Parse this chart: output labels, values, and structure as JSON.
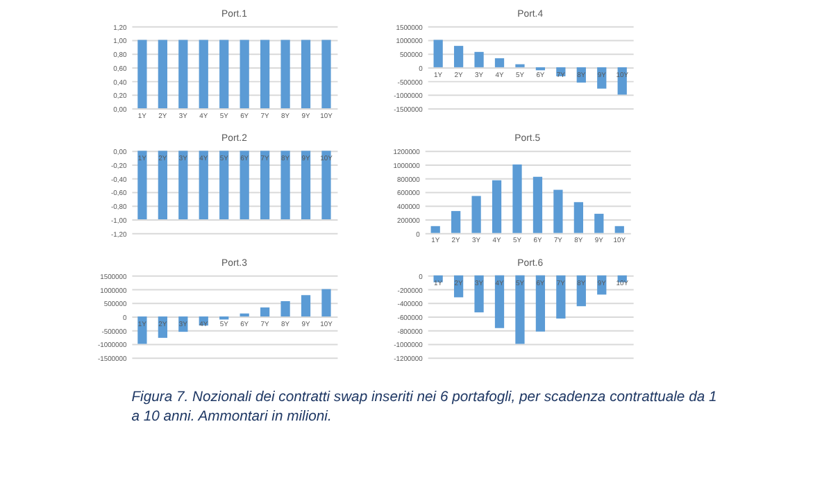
{
  "chart_data": [
    {
      "type": "bar",
      "title": "Port.1",
      "categories": [
        "1Y",
        "2Y",
        "3Y",
        "4Y",
        "5Y",
        "6Y",
        "7Y",
        "8Y",
        "9Y",
        "10Y"
      ],
      "values": [
        1,
        1,
        1,
        1,
        1,
        1,
        1,
        1,
        1,
        1
      ],
      "color": "#5b9bd5",
      "ylim": [
        0,
        1.2
      ],
      "yticks": [
        {
          "value": 0,
          "label": "0,00"
        },
        {
          "value": 0.2,
          "label": "0,20"
        },
        {
          "value": 0.4,
          "label": "0,40"
        },
        {
          "value": 0.6,
          "label": "0,60"
        },
        {
          "value": 0.8,
          "label": "0,80"
        },
        {
          "value": 1,
          "label": "1,00"
        },
        {
          "value": 1.2,
          "label": "1,20"
        }
      ],
      "grid": "y"
    },
    {
      "type": "bar",
      "title": "Port.4",
      "categories": [
        "1Y",
        "2Y",
        "3Y",
        "4Y",
        "5Y",
        "6Y",
        "7Y",
        "8Y",
        "9Y",
        "10Y"
      ],
      "values": [
        1000000,
        780000,
        560000,
        330000,
        110000,
        -110000,
        -330000,
        -560000,
        -780000,
        -1000000
      ],
      "color": "#5b9bd5",
      "ylim": [
        -1500000,
        1500000
      ],
      "yticks": [
        -1500000,
        -1000000,
        -500000,
        0,
        500000,
        1000000,
        1500000
      ],
      "grid": "y"
    },
    {
      "type": "bar",
      "title": "Port.2",
      "categories": [
        "1Y",
        "2Y",
        "3Y",
        "4Y",
        "5Y",
        "6Y",
        "7Y",
        "8Y",
        "9Y",
        "10Y"
      ],
      "values": [
        -1,
        -1,
        -1,
        -1,
        -1,
        -1,
        -1,
        -1,
        -1,
        -1
      ],
      "color": "#5b9bd5",
      "ylim": [
        -1.2,
        0
      ],
      "yticks": [
        {
          "value": -1.2,
          "label": "-1,20"
        },
        {
          "value": -1,
          "label": "-1,00"
        },
        {
          "value": -0.8,
          "label": "-0,80"
        },
        {
          "value": -0.6,
          "label": "-0,60"
        },
        {
          "value": -0.4,
          "label": "-0,40"
        },
        {
          "value": -0.2,
          "label": "-0,20"
        },
        {
          "value": 0,
          "label": "0,00"
        }
      ],
      "grid": "y"
    },
    {
      "type": "bar",
      "title": "Port.5",
      "categories": [
        "1Y",
        "2Y",
        "3Y",
        "4Y",
        "5Y",
        "6Y",
        "7Y",
        "8Y",
        "9Y",
        "10Y"
      ],
      "values": [
        100000,
        320000,
        540000,
        770000,
        1000000,
        820000,
        630000,
        450000,
        280000,
        100000
      ],
      "color": "#5b9bd5",
      "ylim": [
        0,
        1200000
      ],
      "yticks": [
        0,
        200000,
        400000,
        600000,
        800000,
        1000000,
        1200000
      ],
      "grid": "y"
    },
    {
      "type": "bar",
      "title": "Port.3",
      "categories": [
        "1Y",
        "2Y",
        "3Y",
        "4Y",
        "5Y",
        "6Y",
        "7Y",
        "8Y",
        "9Y",
        "10Y"
      ],
      "values": [
        -1000000,
        -780000,
        -560000,
        -330000,
        -110000,
        110000,
        330000,
        560000,
        780000,
        1000000
      ],
      "color": "#5b9bd5",
      "ylim": [
        -1500000,
        1500000
      ],
      "yticks": [
        -1500000,
        -1000000,
        -500000,
        0,
        500000,
        1000000,
        1500000
      ],
      "grid": "y"
    },
    {
      "type": "bar",
      "title": "Port.6",
      "categories": [
        "1Y",
        "2Y",
        "3Y",
        "4Y",
        "5Y",
        "6Y",
        "7Y",
        "8Y",
        "9Y",
        "10Y"
      ],
      "values": [
        -100000,
        -320000,
        -540000,
        -770000,
        -1000000,
        -820000,
        -630000,
        -450000,
        -280000,
        -100000
      ],
      "color": "#5b9bd5",
      "ylim": [
        -1200000,
        0
      ],
      "yticks": [
        -1200000,
        -1000000,
        -800000,
        -600000,
        -400000,
        -200000,
        0
      ],
      "grid": "y",
      "annotations": [
        "Figura 7. Nozionali dei contratti swap inseriti nei 6 portafogli, per scadenza contrattuale da 1 a 10 anni.  Ammontari in milioni."
      ]
    }
  ]
}
